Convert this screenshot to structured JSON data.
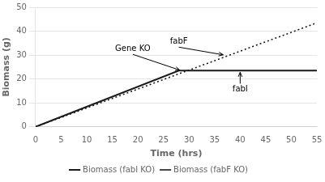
{
  "chart_data": {
    "type": "line",
    "xlabel": "Time (hrs)",
    "ylabel": "Biomass (g)",
    "xlim": [
      0,
      55
    ],
    "ylim": [
      0,
      50
    ],
    "xticks": [
      0,
      5,
      10,
      15,
      20,
      25,
      30,
      35,
      40,
      45,
      50,
      55
    ],
    "yticks": [
      0,
      10,
      20,
      30,
      40,
      50
    ],
    "grid": "y",
    "legend": "bottom",
    "series": [
      {
        "name": "Biomass (fabI KO)",
        "color": "#1a1a1a",
        "line_style": "solid",
        "x": [
          0,
          28,
          55
        ],
        "values": [
          0,
          23.5,
          23.5
        ]
      },
      {
        "name": "Biomass (fabF KO)",
        "color": "#1a1a1a",
        "line_style": "dotted",
        "x": [
          0,
          55
        ],
        "values": [
          0,
          43.5
        ]
      }
    ],
    "annotations": [
      {
        "text": "Gene KO",
        "xy": [
          28.5,
          23.5
        ],
        "xytext": [
          19,
          31
        ]
      },
      {
        "text": "fabF",
        "xy": [
          37,
          30
        ],
        "xytext": [
          28,
          34
        ]
      },
      {
        "text": "fabI",
        "xy": [
          40,
          23.5
        ],
        "xytext": [
          40,
          14
        ]
      }
    ]
  }
}
